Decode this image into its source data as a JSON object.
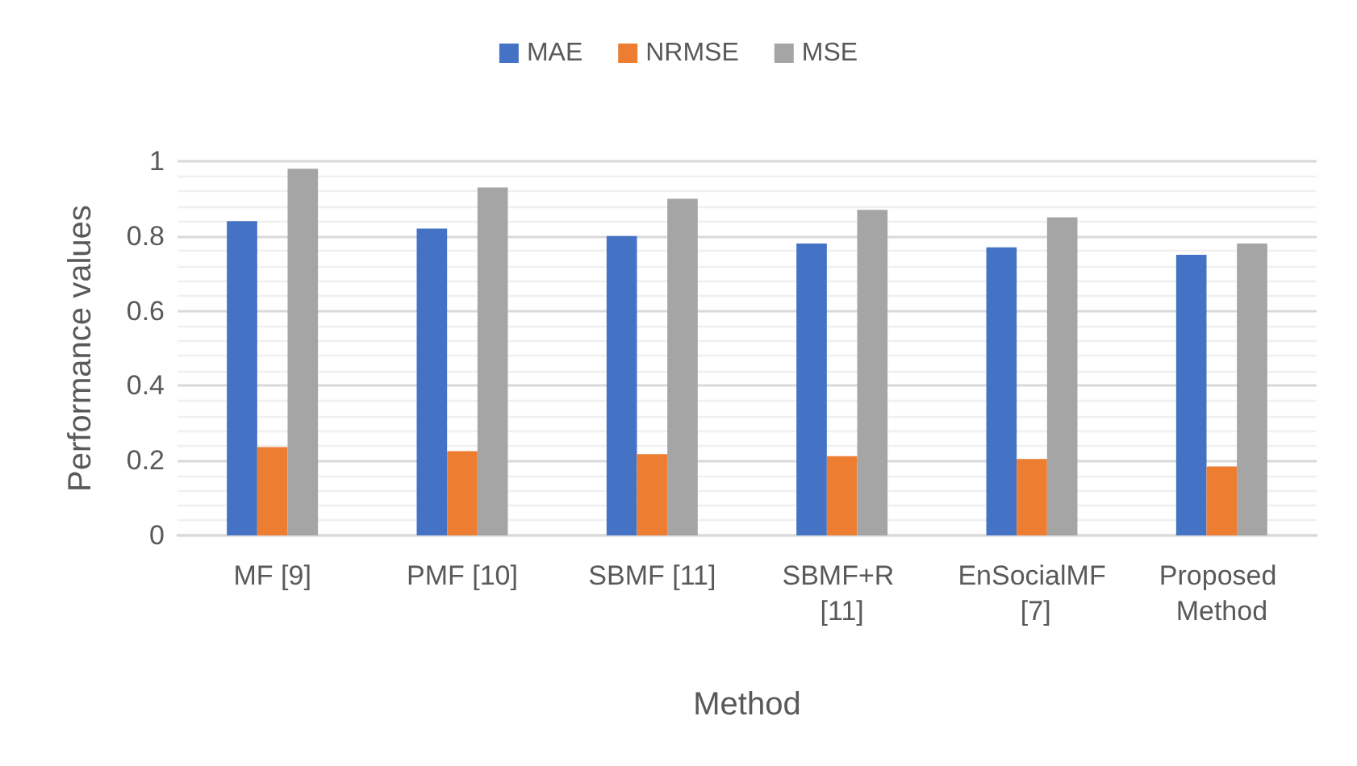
{
  "chart_data": {
    "type": "bar",
    "xlabel": "Method",
    "ylabel": "Performance values",
    "categories": [
      "MF [9]",
      "PMF [10]",
      "SBMF [11]",
      "SBMF+R [11]",
      "EnSocialMF [7]",
      "Proposed Method"
    ],
    "series": [
      {
        "name": "MAE",
        "color": "#4472c4",
        "values": [
          0.84,
          0.82,
          0.8,
          0.78,
          0.77,
          0.75
        ]
      },
      {
        "name": "NRMSE",
        "color": "#ed7d31",
        "values": [
          0.236,
          0.225,
          0.217,
          0.212,
          0.204,
          0.184
        ]
      },
      {
        "name": "MSE",
        "color": "#a5a5a5",
        "values": [
          0.98,
          0.93,
          0.9,
          0.87,
          0.85,
          0.78
        ]
      }
    ],
    "ylim": [
      0,
      1
    ],
    "yticks": [
      0,
      0.2,
      0.4,
      0.6,
      0.8,
      1
    ],
    "grid": "y",
    "legend": "top"
  }
}
